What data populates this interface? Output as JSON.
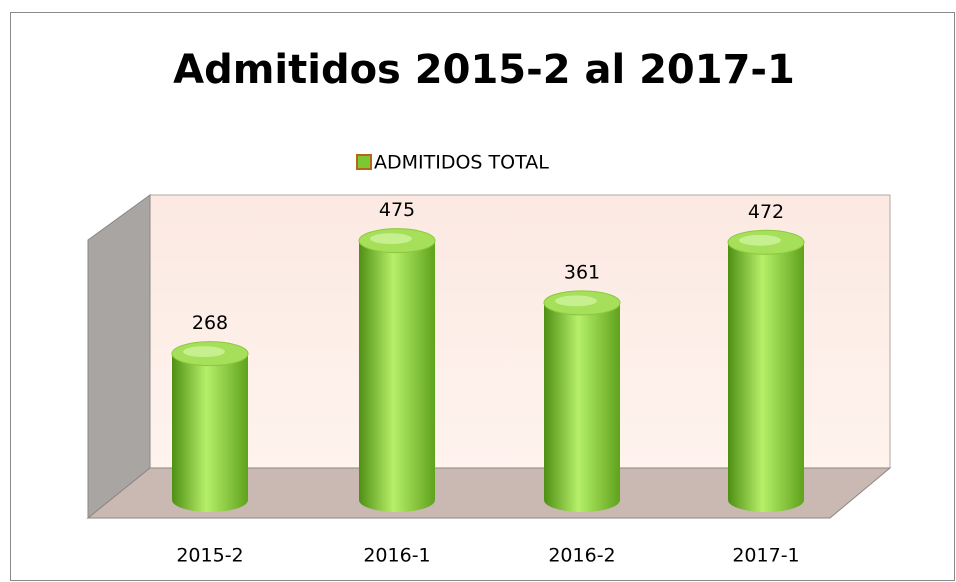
{
  "chart_data": {
    "type": "bar",
    "title": "Admitidos 2015-2 al 2017-1",
    "categories": [
      "2015-2",
      "2016-1",
      "2016-2",
      "2017-1"
    ],
    "series": [
      {
        "name": "ADMITIDOS TOTAL",
        "color": "#7cc832",
        "values": [
          268,
          475,
          361,
          472
        ]
      }
    ],
    "ylim": [
      0,
      500
    ],
    "legend": "top"
  }
}
